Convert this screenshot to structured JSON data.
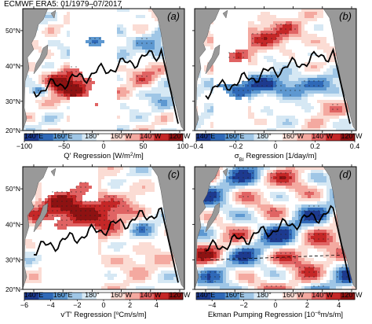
{
  "header": "ECMWF ERA5: 01/1979–07/2017",
  "chart_data": [
    {
      "type": "heatmap",
      "panel_label": "(a)",
      "colorbar_label_main": "Q' Regression [W/m",
      "colorbar_label_sup": "2",
      "colorbar_label_tail": "/m]",
      "colorbar_ticks": [
        -100,
        -50,
        0,
        50,
        100
      ],
      "clim": [
        -100,
        100
      ],
      "xticklabels": [
        "140°E",
        "160°E",
        "180°",
        "160°W",
        "140°W",
        "120°W"
      ],
      "yticklabels": [
        "50°N",
        "40°N",
        "30°N",
        "20°N"
      ],
      "xlim": [
        130,
        240
      ],
      "ylim": [
        20,
        55
      ]
    },
    {
      "type": "heatmap",
      "panel_label": "(b)",
      "colorbar_label_main": "σ",
      "colorbar_label_sub": "BI",
      "colorbar_label_tail": " Regression [1/day/m]",
      "colorbar_ticks": [
        -0.4,
        -0.2,
        0,
        0.2,
        0.4
      ],
      "clim": [
        -0.4,
        0.4
      ],
      "xticklabels": [
        "140°E",
        "160°E",
        "180°",
        "160°W",
        "140°W",
        "120°W"
      ],
      "yticklabels": [],
      "xlim": [
        130,
        240
      ],
      "ylim": [
        20,
        55
      ]
    },
    {
      "type": "heatmap",
      "panel_label": "(c)",
      "colorbar_label_main": "v'T' Regression [",
      "colorbar_label_sup": "o",
      "colorbar_label_tail": "Cm/s/m]",
      "colorbar_ticks": [
        -6,
        -4,
        -2,
        0,
        2,
        4
      ],
      "clim": [
        -6,
        6
      ],
      "xticklabels": [
        "140°E",
        "160°E",
        "180°",
        "160°W",
        "140°W",
        "120°W"
      ],
      "yticklabels": [
        "50°N",
        "40°N",
        "30°N",
        "20°N"
      ],
      "xlim": [
        130,
        240
      ],
      "ylim": [
        20,
        55
      ]
    },
    {
      "type": "heatmap",
      "panel_label": "(d)",
      "colorbar_label_main": "Ekman Pumping Regression [10",
      "colorbar_label_sup": "−6",
      "colorbar_label_tail": "m/s/m]",
      "colorbar_ticks": [
        -4,
        -2,
        0,
        2,
        4
      ],
      "clim": [
        -5,
        5
      ],
      "xticklabels": [
        "140°E",
        "160°E",
        "180°",
        "160°W",
        "140°W",
        "120°W"
      ],
      "yticklabels": [],
      "xlim": [
        130,
        240
      ],
      "ylim": [
        20,
        55
      ]
    }
  ],
  "colormap": [
    "#1d3a8f",
    "#2f69b8",
    "#5d98d1",
    "#9fc6e6",
    "#d6e8f4",
    "#ffffff",
    "#fbdcd4",
    "#f4a9a0",
    "#e06363",
    "#c52727",
    "#8e1212"
  ],
  "land_color": "#999999",
  "front_line_color": "#000000"
}
